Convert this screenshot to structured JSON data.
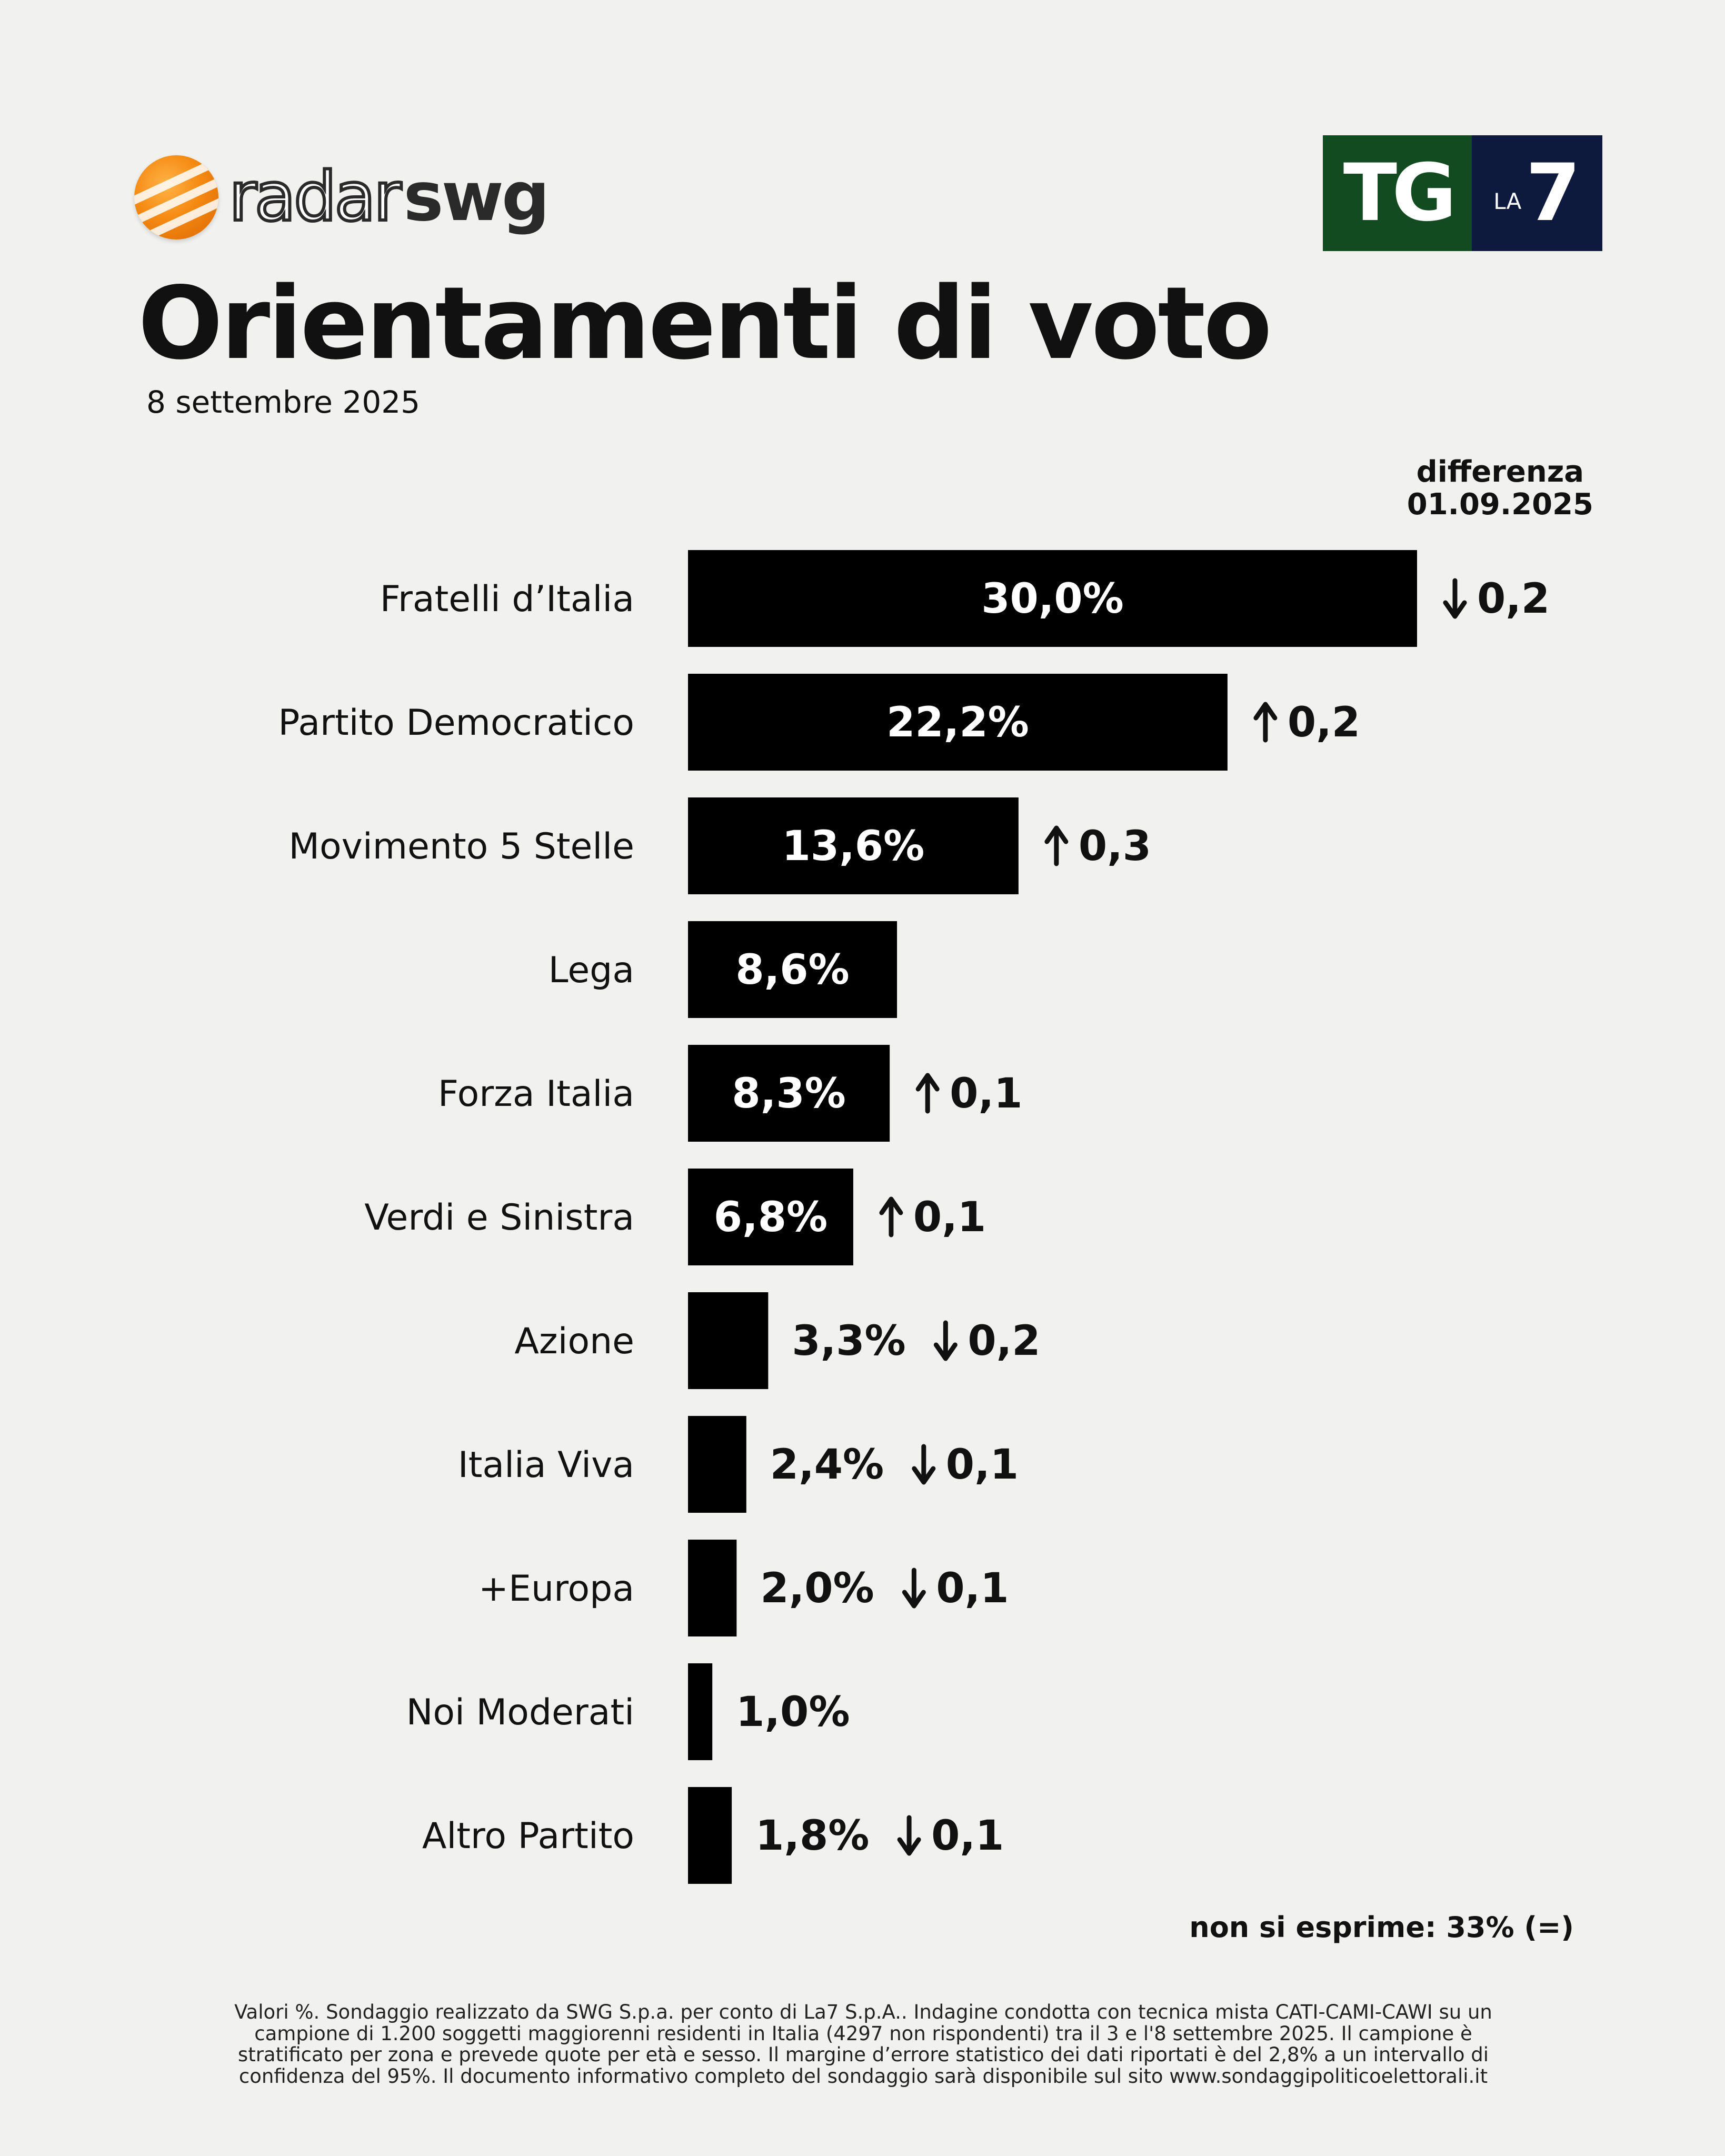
{
  "header": {
    "brand_left_part1": "radar",
    "brand_left_part2": "swg",
    "brand_right_tg": "TG",
    "brand_right_la": "LA",
    "brand_right_7": "7",
    "title": "Orientamenti di voto",
    "date": "8 settembre 2025"
  },
  "diff_header": {
    "line1": "differenza",
    "line2": "01.09.2025"
  },
  "chart_data": {
    "type": "bar",
    "orientation": "horizontal",
    "categories": [
      "Fratelli d’Italia",
      "Partito Democratico",
      "Movimento 5 Stelle",
      "Lega",
      "Forza Italia",
      "Verdi e Sinistra",
      "Azione",
      "Italia Viva",
      "+Europa",
      "Noi Moderati",
      "Altro Partito"
    ],
    "values": [
      30.0,
      22.2,
      13.6,
      8.6,
      8.3,
      6.8,
      3.3,
      2.4,
      2.0,
      1.0,
      1.8
    ],
    "value_labels": [
      "30,0%",
      "22,2%",
      "13,6%",
      "8,6%",
      "8,3%",
      "6,8%",
      "3,3%",
      "2,4%",
      "2,0%",
      "1,0%",
      "1,8%"
    ],
    "change_direction": [
      "down",
      "up",
      "up",
      "",
      "up",
      "up",
      "down",
      "down",
      "down",
      "",
      "down"
    ],
    "change_labels": [
      "0,2",
      "0,2",
      "0,3",
      "",
      "0,1",
      "0,1",
      "0,2",
      "0,1",
      "0,1",
      "",
      "0,1"
    ],
    "bar_color": "#000000",
    "xlim": [
      0,
      30
    ]
  },
  "note": "non si esprime: 33% (=)",
  "footnote": "Valori %. Sondaggio realizzato da SWG S.p.a. per conto di La7 S.p.A.. Indagine condotta con tecnica mista CATI-CAMI-CAWI su un campione di 1.200 soggetti maggiorenni residenti in Italia (4297 non rispondenti) tra il 3 e l'8 settembre 2025. Il campione è stratificato per zona e prevede quote per età e sesso. Il margine d’errore statistico dei dati riportati è del 2,8% a un intervallo di confidenza del 95%. Il documento informativo completo del sondaggio sarà disponibile sul sito www.sondaggipoliticoelettorali.it"
}
